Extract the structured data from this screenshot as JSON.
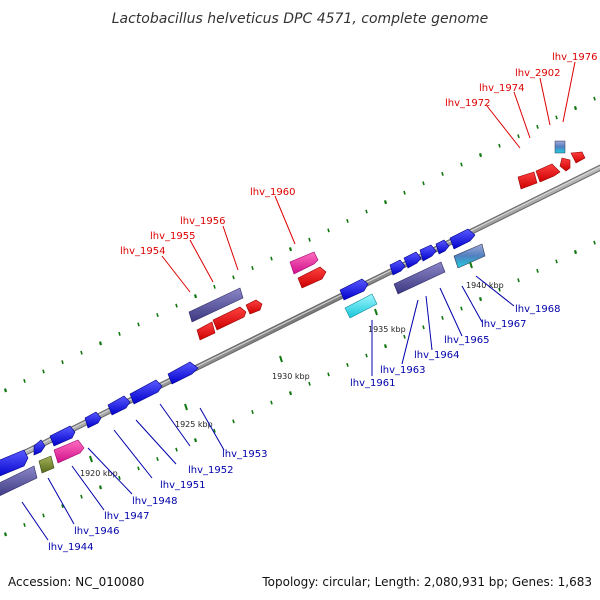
{
  "title": "Lactobacillus helveticus DPC 4571, complete genome",
  "footer": {
    "accession": "Accession: NC_010080",
    "summary": "Topology: circular; Length: 2,080,931 bp; Genes: 1,683"
  },
  "colors": {
    "top_label": "#dd0000",
    "bottom_label": "#0000aa",
    "backbone": "#888888",
    "tick_mark": "#117711"
  },
  "scale_labels": [
    "1920 kbp",
    "1925 kbp",
    "1930 kbp",
    "1935 kbp",
    "1940 kbp"
  ],
  "top_genes": [
    "lhv_1954",
    "lhv_1955",
    "lhv_1956",
    "lhv_1960",
    "lhv_1972",
    "lhv_1974",
    "lhv_2902",
    "lhv_1976"
  ],
  "bottom_genes": [
    "lhv_1944",
    "lhv_1946",
    "lhv_1947",
    "lhv_1948",
    "lhv_1951",
    "lhv_1952",
    "lhv_1953",
    "lhv_1961",
    "lhv_1963",
    "lhv_1964",
    "lhv_1965",
    "lhv_1967",
    "lhv_1968"
  ]
}
